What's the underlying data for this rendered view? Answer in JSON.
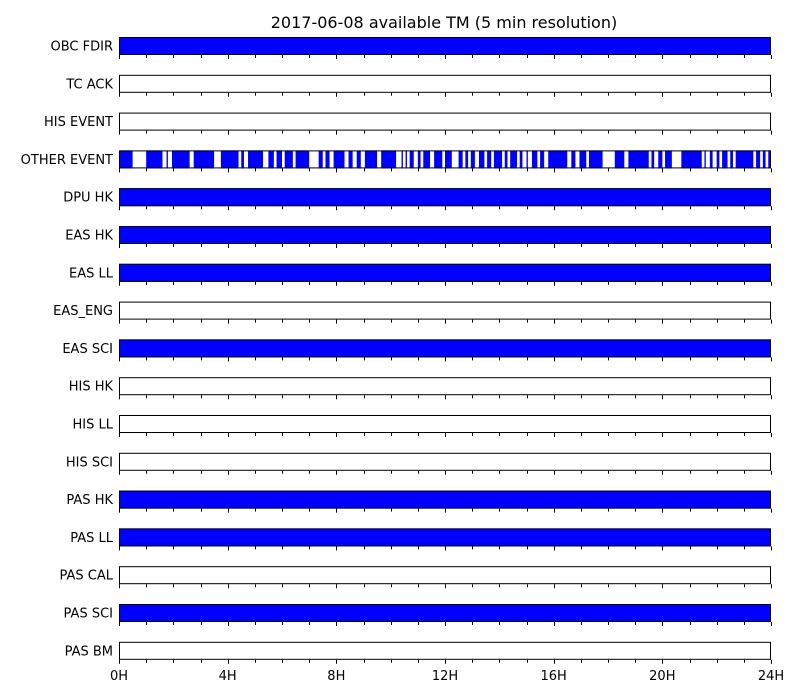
{
  "chart_data": {
    "type": "timeline",
    "title": "2017-06-08 available TM (5 min resolution)",
    "x_unit": "hours",
    "xlim": [
      0,
      24
    ],
    "x_ticks": [
      {
        "value": 0,
        "label": "0H"
      },
      {
        "value": 4,
        "label": "4H"
      },
      {
        "value": 8,
        "label": "8H"
      },
      {
        "value": 12,
        "label": "12H"
      },
      {
        "value": 16,
        "label": "16H"
      },
      {
        "value": 20,
        "label": "20H"
      },
      {
        "value": 24,
        "label": "24H"
      }
    ],
    "minor_tick_interval_hours": 1,
    "colors": {
      "available": "#0000ff",
      "unavailable": "#ffffff",
      "border": "#000000"
    },
    "rows": [
      {
        "label": "OBC FDIR",
        "available": [
          [
            0,
            24
          ]
        ]
      },
      {
        "label": "TC ACK",
        "available": []
      },
      {
        "label": "HIS EVENT",
        "available": []
      },
      {
        "label": "OTHER EVENT",
        "available": [
          [
            0.0,
            0.5
          ],
          [
            1.0,
            1.6
          ],
          [
            1.75,
            1.8
          ],
          [
            1.95,
            2.6
          ],
          [
            2.75,
            3.5
          ],
          [
            3.75,
            4.4
          ],
          [
            4.5,
            4.6
          ],
          [
            4.75,
            5.3
          ],
          [
            5.5,
            5.7
          ],
          [
            5.8,
            6.0
          ],
          [
            6.1,
            6.4
          ],
          [
            6.5,
            7.0
          ],
          [
            7.35,
            7.5
          ],
          [
            7.6,
            7.75
          ],
          [
            7.9,
            8.3
          ],
          [
            8.45,
            8.6
          ],
          [
            8.75,
            8.9
          ],
          [
            9.05,
            9.5
          ],
          [
            9.65,
            10.2
          ],
          [
            10.4,
            10.45
          ],
          [
            10.55,
            10.6
          ],
          [
            10.7,
            10.85
          ],
          [
            11.0,
            11.1
          ],
          [
            11.2,
            11.45
          ],
          [
            11.6,
            11.9
          ],
          [
            12.0,
            12.25
          ],
          [
            12.5,
            12.65
          ],
          [
            12.75,
            12.85
          ],
          [
            12.95,
            13.1
          ],
          [
            13.25,
            13.45
          ],
          [
            13.55,
            13.7
          ],
          [
            13.8,
            14.1
          ],
          [
            14.2,
            14.3
          ],
          [
            14.4,
            14.65
          ],
          [
            14.75,
            14.85
          ],
          [
            15.0,
            15.05
          ],
          [
            15.2,
            15.4
          ],
          [
            15.5,
            15.65
          ],
          [
            15.8,
            16.5
          ],
          [
            16.65,
            16.8
          ],
          [
            16.95,
            17.2
          ],
          [
            17.3,
            17.8
          ],
          [
            18.25,
            18.6
          ],
          [
            18.75,
            19.5
          ],
          [
            19.6,
            19.7
          ],
          [
            19.85,
            20.0
          ],
          [
            20.1,
            20.35
          ],
          [
            20.7,
            21.45
          ],
          [
            21.55,
            21.6
          ],
          [
            21.75,
            21.85
          ],
          [
            22.0,
            22.1
          ],
          [
            22.2,
            22.4
          ],
          [
            22.5,
            22.6
          ],
          [
            22.7,
            23.35
          ],
          [
            23.45,
            23.6
          ],
          [
            23.7,
            23.8
          ],
          [
            23.9,
            24.0
          ]
        ]
      },
      {
        "label": "DPU HK",
        "available": [
          [
            0,
            24
          ]
        ]
      },
      {
        "label": "EAS HK",
        "available": [
          [
            0,
            24
          ]
        ]
      },
      {
        "label": "EAS LL",
        "available": [
          [
            0,
            24
          ]
        ]
      },
      {
        "label": "EAS_ENG",
        "available": []
      },
      {
        "label": "EAS SCI",
        "available": [
          [
            0,
            24
          ]
        ]
      },
      {
        "label": "HIS HK",
        "available": []
      },
      {
        "label": "HIS LL",
        "available": []
      },
      {
        "label": "HIS SCI",
        "available": []
      },
      {
        "label": "PAS HK",
        "available": [
          [
            0,
            24
          ]
        ]
      },
      {
        "label": "PAS LL",
        "available": [
          [
            0,
            24
          ]
        ]
      },
      {
        "label": "PAS CAL",
        "available": []
      },
      {
        "label": "PAS SCI",
        "available": [
          [
            0,
            24
          ]
        ]
      },
      {
        "label": "PAS BM",
        "available": []
      }
    ]
  }
}
